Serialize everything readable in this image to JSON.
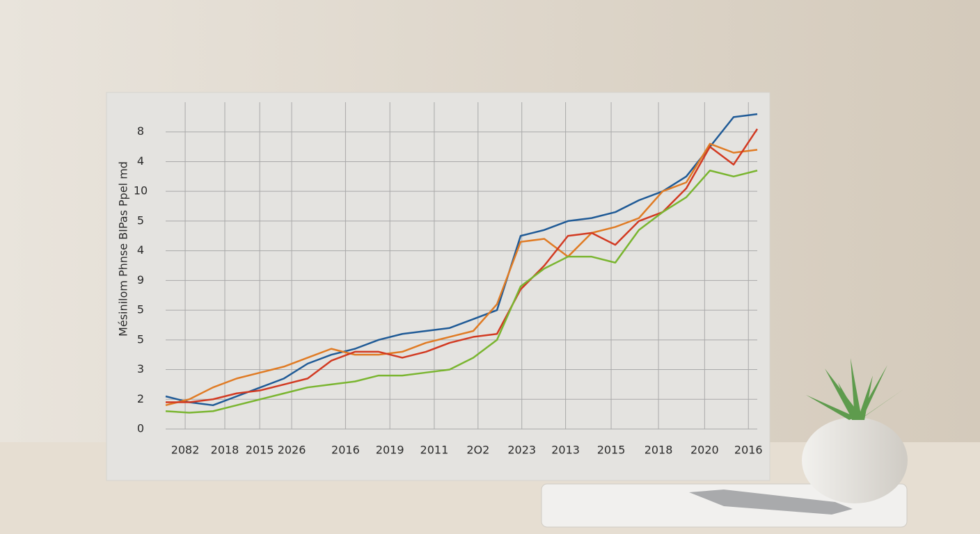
{
  "chart_data": {
    "type": "line",
    "y_label": "Mésinilom Phnse  BIPas Ppel md",
    "x": [
      0,
      4,
      8,
      12,
      16,
      20,
      24,
      28,
      32,
      36,
      40,
      44,
      48,
      52,
      56,
      60,
      64,
      68,
      72,
      76,
      80,
      84,
      88,
      92,
      96,
      100
    ],
    "series": [
      {
        "name": "Blue",
        "color": "#1f5a96",
        "values": [
          1.1,
          0.9,
          0.8,
          1.1,
          1.4,
          1.7,
          2.2,
          2.5,
          2.7,
          3.0,
          3.2,
          3.3,
          3.4,
          3.7,
          4.0,
          6.5,
          6.7,
          7.0,
          7.1,
          7.3,
          7.7,
          8.0,
          8.5,
          9.5,
          10.5,
          10.6
        ]
      },
      {
        "name": "Orange",
        "color": "#e07b24",
        "values": [
          0.8,
          1.0,
          1.4,
          1.7,
          1.9,
          2.1,
          2.4,
          2.7,
          2.5,
          2.5,
          2.6,
          2.9,
          3.1,
          3.3,
          4.2,
          6.3,
          6.4,
          5.8,
          6.6,
          6.8,
          7.1,
          8.0,
          8.3,
          9.6,
          9.3,
          9.4
        ]
      },
      {
        "name": "Red",
        "color": "#d23a22",
        "values": [
          0.9,
          0.9,
          1.0,
          1.2,
          1.3,
          1.5,
          1.7,
          2.3,
          2.6,
          2.6,
          2.4,
          2.6,
          2.9,
          3.1,
          3.2,
          4.7,
          5.5,
          6.5,
          6.6,
          6.2,
          7.0,
          7.3,
          8.1,
          9.5,
          8.9,
          10.1
        ]
      },
      {
        "name": "Green",
        "color": "#7ab530",
        "values": [
          0.6,
          0.55,
          0.6,
          0.8,
          1.0,
          1.2,
          1.4,
          1.5,
          1.6,
          1.8,
          1.8,
          1.9,
          2.0,
          2.4,
          3.0,
          4.8,
          5.4,
          5.8,
          5.8,
          5.6,
          6.7,
          7.3,
          7.8,
          8.7,
          8.5,
          8.7
        ]
      }
    ],
    "xlim": [
      0,
      100
    ],
    "xticks": [
      {
        "value": 3.3,
        "label": "2082"
      },
      {
        "value": 10,
        "label": "2018"
      },
      {
        "value": 15.9,
        "label": "2015"
      },
      {
        "value": 21.3,
        "label": "2026"
      },
      {
        "value": 30.4,
        "label": "2016"
      },
      {
        "value": 37.9,
        "label": "2019"
      },
      {
        "value": 45.4,
        "label": "2011"
      },
      {
        "value": 52.8,
        "label": "2O2"
      },
      {
        "value": 60.2,
        "label": "2023"
      },
      {
        "value": 67.6,
        "label": "2013"
      },
      {
        "value": 75.3,
        "label": "2015"
      },
      {
        "value": 83.3,
        "label": "2018"
      },
      {
        "value": 91.1,
        "label": "2020"
      },
      {
        "value": 98.5,
        "label": "2016"
      }
    ],
    "ylim": [
      0,
      11
    ],
    "yticks": [
      0,
      {
        "value": 1,
        "label": "2"
      },
      {
        "value": 2,
        "label": "3"
      },
      {
        "value": 3,
        "label": "5"
      },
      {
        "value": 4,
        "label": "5"
      },
      {
        "value": 5,
        "label": "9"
      },
      {
        "value": 6,
        "label": "4"
      },
      {
        "value": 7,
        "label": "5"
      },
      {
        "value": 8,
        "label": "10"
      },
      {
        "value": 9,
        "label": "4"
      },
      {
        "value": 10,
        "label": "8"
      }
    ],
    "grid": true
  }
}
